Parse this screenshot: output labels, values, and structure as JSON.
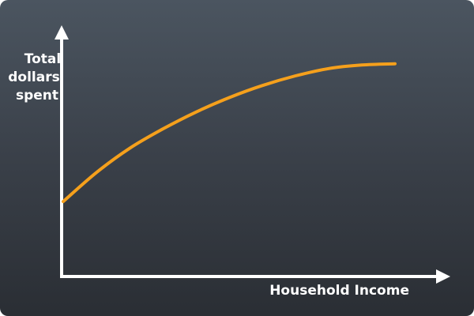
{
  "chart_data": {
    "type": "line",
    "title": "",
    "xlabel": "Household Income",
    "ylabel_lines": [
      "Total",
      "dollars",
      "spent"
    ],
    "xticks": false,
    "yticks": false,
    "grid": false,
    "series": [
      {
        "shape": "concave-increasing",
        "color": "#f5a01c",
        "x": [
          0,
          0.1,
          0.2,
          0.3,
          0.4,
          0.5,
          0.6,
          0.7,
          0.8,
          0.9,
          1.0
        ],
        "y": [
          0.31,
          0.43,
          0.53,
          0.61,
          0.68,
          0.74,
          0.79,
          0.83,
          0.86,
          0.875,
          0.88
        ]
      }
    ]
  },
  "colors": {
    "axis": "#ffffff",
    "line": "#f5a01c",
    "text": "#ffffff"
  }
}
